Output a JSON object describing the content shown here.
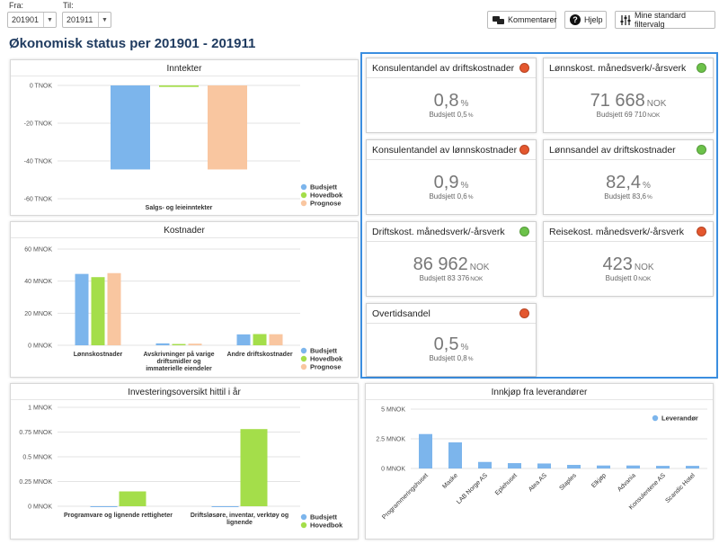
{
  "filters": {
    "from_label": "Fra:",
    "from_value": "201901",
    "to_label": "Til:",
    "to_value": "201911"
  },
  "toolbar": {
    "comments_label": "Kommentarer",
    "help_label": "Hjelp",
    "filters_label": "Mine standard filtervalg"
  },
  "page_title": "Økonomisk status per 201901 - 201911",
  "colors": {
    "budsjett": "#7cb5ec",
    "hovedbok": "#a4de4a",
    "prognose": "#f9c6a0",
    "leverandor": "#7cb5ec",
    "red": "#e4572e",
    "green": "#6cc24a",
    "accent": "#3b8ee0"
  },
  "kpis": [
    {
      "title": "Konsulentandel av driftskostnader",
      "status": "red",
      "value": "0,8",
      "unit": "%",
      "budget_label": "Budsjett",
      "budget_value": "0,5",
      "budget_unit": "%"
    },
    {
      "title": "Lønnskost. månedsverk/-årsverk",
      "status": "green",
      "value": "71 668",
      "unit": "NOK",
      "budget_label": "Budsjett",
      "budget_value": "69 710",
      "budget_unit": "NOK"
    },
    {
      "title": "Konsulentandel av lønnskostnader",
      "status": "red",
      "value": "0,9",
      "unit": "%",
      "budget_label": "Budsjett",
      "budget_value": "0,6",
      "budget_unit": "%"
    },
    {
      "title": "Lønnsandel av driftskostnader",
      "status": "green",
      "value": "82,4",
      "unit": "%",
      "budget_label": "Budsjett",
      "budget_value": "83,6",
      "budget_unit": "%"
    },
    {
      "title": "Driftskost. månedsverk/-årsverk",
      "status": "green",
      "value": "86 962",
      "unit": "NOK",
      "budget_label": "Budsjett",
      "budget_value": "83 376",
      "budget_unit": "NOK"
    },
    {
      "title": "Reisekost. månedsverk/-årsverk",
      "status": "red",
      "value": "423",
      "unit": "NOK",
      "budget_label": "Budsjett",
      "budget_value": "0",
      "budget_unit": "NOK"
    },
    {
      "title": "Overtidsandel",
      "status": "red",
      "value": "0,5",
      "unit": "%",
      "budget_label": "Budsjett",
      "budget_value": "0,8",
      "budget_unit": "%"
    }
  ],
  "chart_data": [
    {
      "id": "inntekter",
      "type": "bar",
      "title": "Inntekter",
      "categories": [
        "Salgs- og leieinntekter"
      ],
      "series": [
        {
          "name": "Budsjett",
          "values": [
            -44.5
          ]
        },
        {
          "name": "Hovedbok",
          "values": [
            -0.8
          ]
        },
        {
          "name": "Prognose",
          "values": [
            -44.5
          ]
        }
      ],
      "ylim": [
        -60,
        0
      ],
      "yticks": [
        0,
        -20,
        -40,
        -60
      ],
      "ytick_labels": [
        "0 TNOK",
        "-20 TNOK",
        "-40 TNOK",
        "-60 TNOK"
      ],
      "legend": "bottom-right"
    },
    {
      "id": "kostnader",
      "type": "bar",
      "title": "Kostnader",
      "categories": [
        "Lønnskostnader",
        "Avskrivninger på varige driftsmidler og immaterielle eiendeler",
        "Andre driftskostnader"
      ],
      "series": [
        {
          "name": "Budsjett",
          "values": [
            44.5,
            1.2,
            6.8
          ]
        },
        {
          "name": "Hovedbok",
          "values": [
            42.5,
            0.8,
            7.0
          ]
        },
        {
          "name": "Prognose",
          "values": [
            45.0,
            1.0,
            6.9
          ]
        }
      ],
      "ylim": [
        0,
        60
      ],
      "yticks": [
        0,
        20,
        40,
        60
      ],
      "ytick_labels": [
        "0 MNOK",
        "20 MNOK",
        "40 MNOK",
        "60 MNOK"
      ],
      "legend": "bottom-right"
    },
    {
      "id": "investering",
      "type": "bar",
      "title": "Investeringsoversikt hittil i år",
      "categories": [
        "Programvare og lignende rettigheter",
        "Driftsløsøre, inventar, verktøy og lignende"
      ],
      "series": [
        {
          "name": "Budsjett",
          "values": [
            0.0,
            0.0
          ]
        },
        {
          "name": "Hovedbok",
          "values": [
            0.15,
            0.78
          ]
        }
      ],
      "ylim": [
        0,
        1
      ],
      "yticks": [
        0,
        0.25,
        0.5,
        0.75,
        1
      ],
      "ytick_labels": [
        "0 MNOK",
        "0.25 MNOK",
        "0.5 MNOK",
        "0.75 MNOK",
        "1 MNOK"
      ],
      "legend": "bottom-right"
    },
    {
      "id": "innkjop",
      "type": "bar",
      "title": "Innkjøp fra leverandører",
      "categories": [
        "Programmeringshuset",
        "Maske",
        "LAB Norge AS",
        "Eplehuset",
        "Atea AS",
        "Staples",
        "Elkjøp",
        "Advania",
        "Konsulentene AS",
        "Scandic Hotel"
      ],
      "series": [
        {
          "name": "Leverandør",
          "values": [
            2.9,
            2.2,
            0.55,
            0.45,
            0.42,
            0.3,
            0.25,
            0.25,
            0.22,
            0.22
          ]
        }
      ],
      "ylim": [
        0,
        5
      ],
      "yticks": [
        0,
        2.5,
        5
      ],
      "ytick_labels": [
        "0 MNOK",
        "2.5 MNOK",
        "5 MNOK"
      ],
      "legend": "top-right"
    }
  ]
}
